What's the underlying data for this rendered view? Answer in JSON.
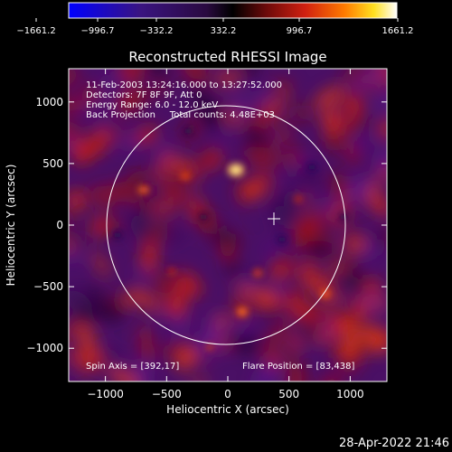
{
  "colorbar": {
    "ticks": [
      "−1661.2",
      "−996.7",
      "−332.2",
      "332.2",
      "996.7",
      "1661.2"
    ],
    "range": [
      -1661.2,
      1661.2
    ]
  },
  "plot": {
    "title": "Reconstructed RHESSI Image",
    "info_lines": [
      "11-Feb-2003 13:24:16.000 to 13:27:52.000",
      "Detectors: 7F 8F 9F, Att 0",
      "Energy Range: 6.0 - 12.0 keV",
      "Back Projection     Total counts: 4.48E+03"
    ],
    "spin_axis": "Spin Axis = [392,17]",
    "flare_position": "Flare Position = [83,438]",
    "timestamp": "28-Apr-2022 21:46"
  },
  "chart_data": {
    "type": "heatmap",
    "title": "Reconstructed RHESSI Image",
    "xlabel": "Heliocentric X (arcsec)",
    "ylabel": "Heliocentric Y (arcsec)",
    "xlim": [
      -1300,
      1300
    ],
    "ylim": [
      -1270,
      1270
    ],
    "xticks": [
      -1000,
      -500,
      0,
      500,
      1000
    ],
    "yticks": [
      -1000,
      -500,
      0,
      500,
      1000
    ],
    "solar_limb_radius_arcsec": 975,
    "solar_limb_center": [
      0,
      0
    ],
    "spin_axis_marker": [
      392,
      17
    ],
    "brightest_source": [
      83,
      438
    ],
    "colormap": "purple-red-yellow-white",
    "colors": {
      "limb": "#ffffff",
      "background": "#000000"
    }
  }
}
